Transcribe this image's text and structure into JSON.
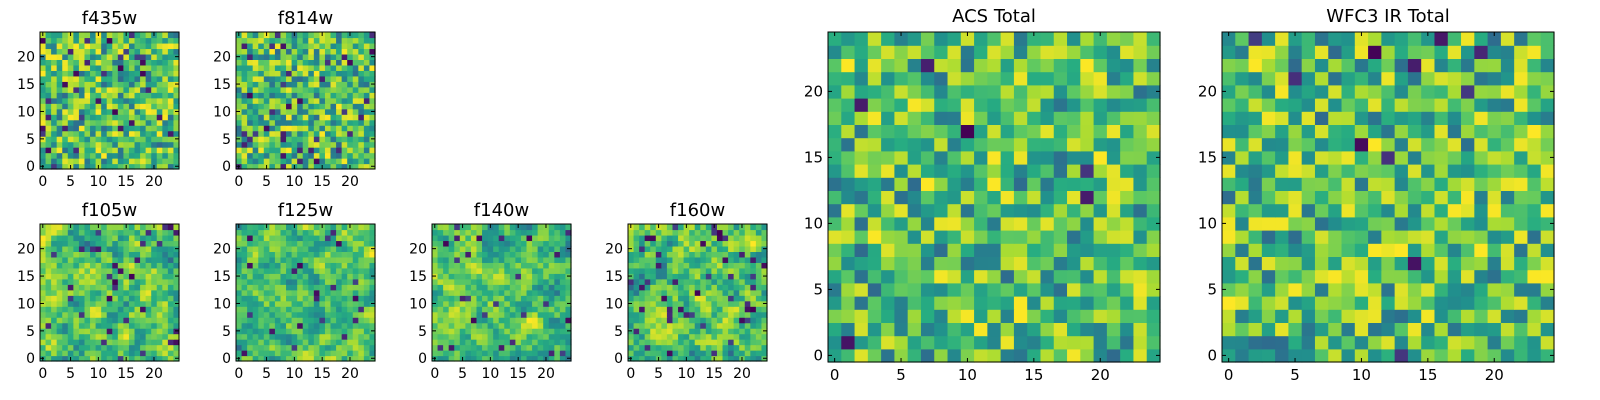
{
  "chart_data": [
    {
      "id": "f435w",
      "type": "heatmap",
      "title": "f435w",
      "grid_size": 25,
      "x_ticks": [
        0,
        5,
        10,
        15,
        20
      ],
      "y_ticks": [
        0,
        5,
        10,
        15,
        20
      ],
      "xlim": [
        0,
        24
      ],
      "ylim": [
        0,
        24
      ],
      "colormap": "viridis",
      "seed": 11,
      "smooth": 0,
      "dark_fraction": 0.06
    },
    {
      "id": "f814w",
      "type": "heatmap",
      "title": "f814w",
      "grid_size": 25,
      "x_ticks": [
        0,
        5,
        10,
        15,
        20
      ],
      "y_ticks": [
        0,
        5,
        10,
        15,
        20
      ],
      "xlim": [
        0,
        24
      ],
      "ylim": [
        0,
        24
      ],
      "colormap": "viridis",
      "seed": 23,
      "smooth": 0,
      "dark_fraction": 0.05
    },
    {
      "id": "f105w",
      "type": "heatmap",
      "title": "f105w",
      "grid_size": 25,
      "x_ticks": [
        0,
        5,
        10,
        15,
        20
      ],
      "y_ticks": [
        0,
        5,
        10,
        15,
        20
      ],
      "xlim": [
        0,
        24
      ],
      "ylim": [
        0,
        24
      ],
      "colormap": "viridis",
      "seed": 37,
      "smooth": 1,
      "dark_fraction": 0.05
    },
    {
      "id": "f125w",
      "type": "heatmap",
      "title": "f125w",
      "grid_size": 25,
      "x_ticks": [
        0,
        5,
        10,
        15,
        20
      ],
      "y_ticks": [
        0,
        5,
        10,
        15,
        20
      ],
      "xlim": [
        0,
        24
      ],
      "ylim": [
        0,
        24
      ],
      "colormap": "viridis",
      "seed": 41,
      "smooth": 1,
      "dark_fraction": 0.04
    },
    {
      "id": "f140w",
      "type": "heatmap",
      "title": "f140w",
      "grid_size": 25,
      "x_ticks": [
        0,
        5,
        10,
        15,
        20
      ],
      "y_ticks": [
        0,
        5,
        10,
        15,
        20
      ],
      "xlim": [
        0,
        24
      ],
      "ylim": [
        0,
        24
      ],
      "colormap": "viridis",
      "seed": 53,
      "smooth": 1,
      "dark_fraction": 0.05
    },
    {
      "id": "f160w",
      "type": "heatmap",
      "title": "f160w",
      "grid_size": 25,
      "x_ticks": [
        0,
        5,
        10,
        15,
        20
      ],
      "y_ticks": [
        0,
        5,
        10,
        15,
        20
      ],
      "xlim": [
        0,
        24
      ],
      "ylim": [
        0,
        24
      ],
      "colormap": "viridis",
      "seed": 67,
      "smooth": 1,
      "dark_fraction": 0.05
    },
    {
      "id": "acs-total",
      "type": "heatmap",
      "title": "ACS Total",
      "grid_size": 25,
      "x_ticks": [
        0,
        5,
        10,
        15,
        20
      ],
      "y_ticks": [
        0,
        5,
        10,
        15,
        20
      ],
      "xlim": [
        0,
        24
      ],
      "ylim": [
        0,
        24
      ],
      "colormap": "viridis",
      "seed": 79,
      "smooth": 0,
      "dark_fraction": 0.02
    },
    {
      "id": "wfc3-ir-total",
      "type": "heatmap",
      "title": "WFC3 IR Total",
      "grid_size": 25,
      "x_ticks": [
        0,
        5,
        10,
        15,
        20
      ],
      "y_ticks": [
        0,
        5,
        10,
        15,
        20
      ],
      "xlim": [
        0,
        24
      ],
      "ylim": [
        0,
        24
      ],
      "colormap": "viridis",
      "seed": 97,
      "smooth": 0,
      "dark_fraction": 0.02
    }
  ]
}
